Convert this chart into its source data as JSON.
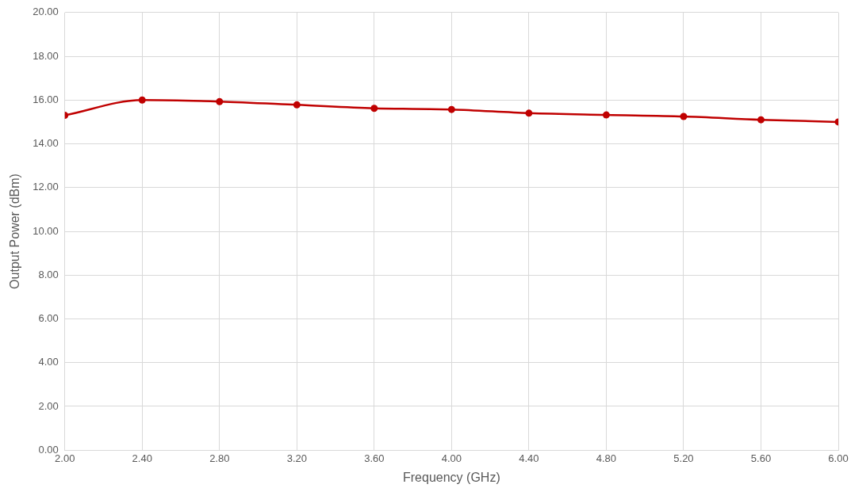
{
  "chart_data": {
    "type": "line",
    "xlabel": "Frequency (GHz)",
    "ylabel": "Output Power (dBm)",
    "x": [
      2.0,
      2.4,
      2.8,
      3.2,
      3.6,
      4.0,
      4.4,
      4.8,
      5.2,
      5.6,
      6.0
    ],
    "series": [
      {
        "color": "#c00000",
        "values": [
          15.3,
          16.0,
          15.93,
          15.78,
          15.62,
          15.57,
          15.4,
          15.32,
          15.25,
          15.1,
          15.0
        ]
      }
    ],
    "xlim": [
      2,
      6
    ],
    "ylim": [
      0,
      20
    ],
    "xticks": [
      {
        "value": 2,
        "label": "2.00"
      },
      {
        "value": 2.4,
        "label": "2.40"
      },
      {
        "value": 2.8,
        "label": "2.80"
      },
      {
        "value": 3.2,
        "label": "3.20"
      },
      {
        "value": 3.6,
        "label": "3.60"
      },
      {
        "value": 4,
        "label": "4.00"
      },
      {
        "value": 4.4,
        "label": "4.40"
      },
      {
        "value": 4.8,
        "label": "4.80"
      },
      {
        "value": 5.2,
        "label": "5.20"
      },
      {
        "value": 5.6,
        "label": "5.60"
      },
      {
        "value": 6,
        "label": "6.00"
      }
    ],
    "yticks": [
      {
        "value": 0,
        "label": "0.00"
      },
      {
        "value": 2,
        "label": "2.00"
      },
      {
        "value": 4,
        "label": "4.00"
      },
      {
        "value": 6,
        "label": "6.00"
      },
      {
        "value": 8,
        "label": "8.00"
      },
      {
        "value": 10,
        "label": "10.00"
      },
      {
        "value": 12,
        "label": "12.00"
      },
      {
        "value": 14,
        "label": "14.00"
      },
      {
        "value": 16,
        "label": "16.00"
      },
      {
        "value": 18,
        "label": "18.00"
      },
      {
        "value": 20,
        "label": "20.00"
      }
    ],
    "grid": true,
    "marker": "circle",
    "line_style": "solid"
  }
}
